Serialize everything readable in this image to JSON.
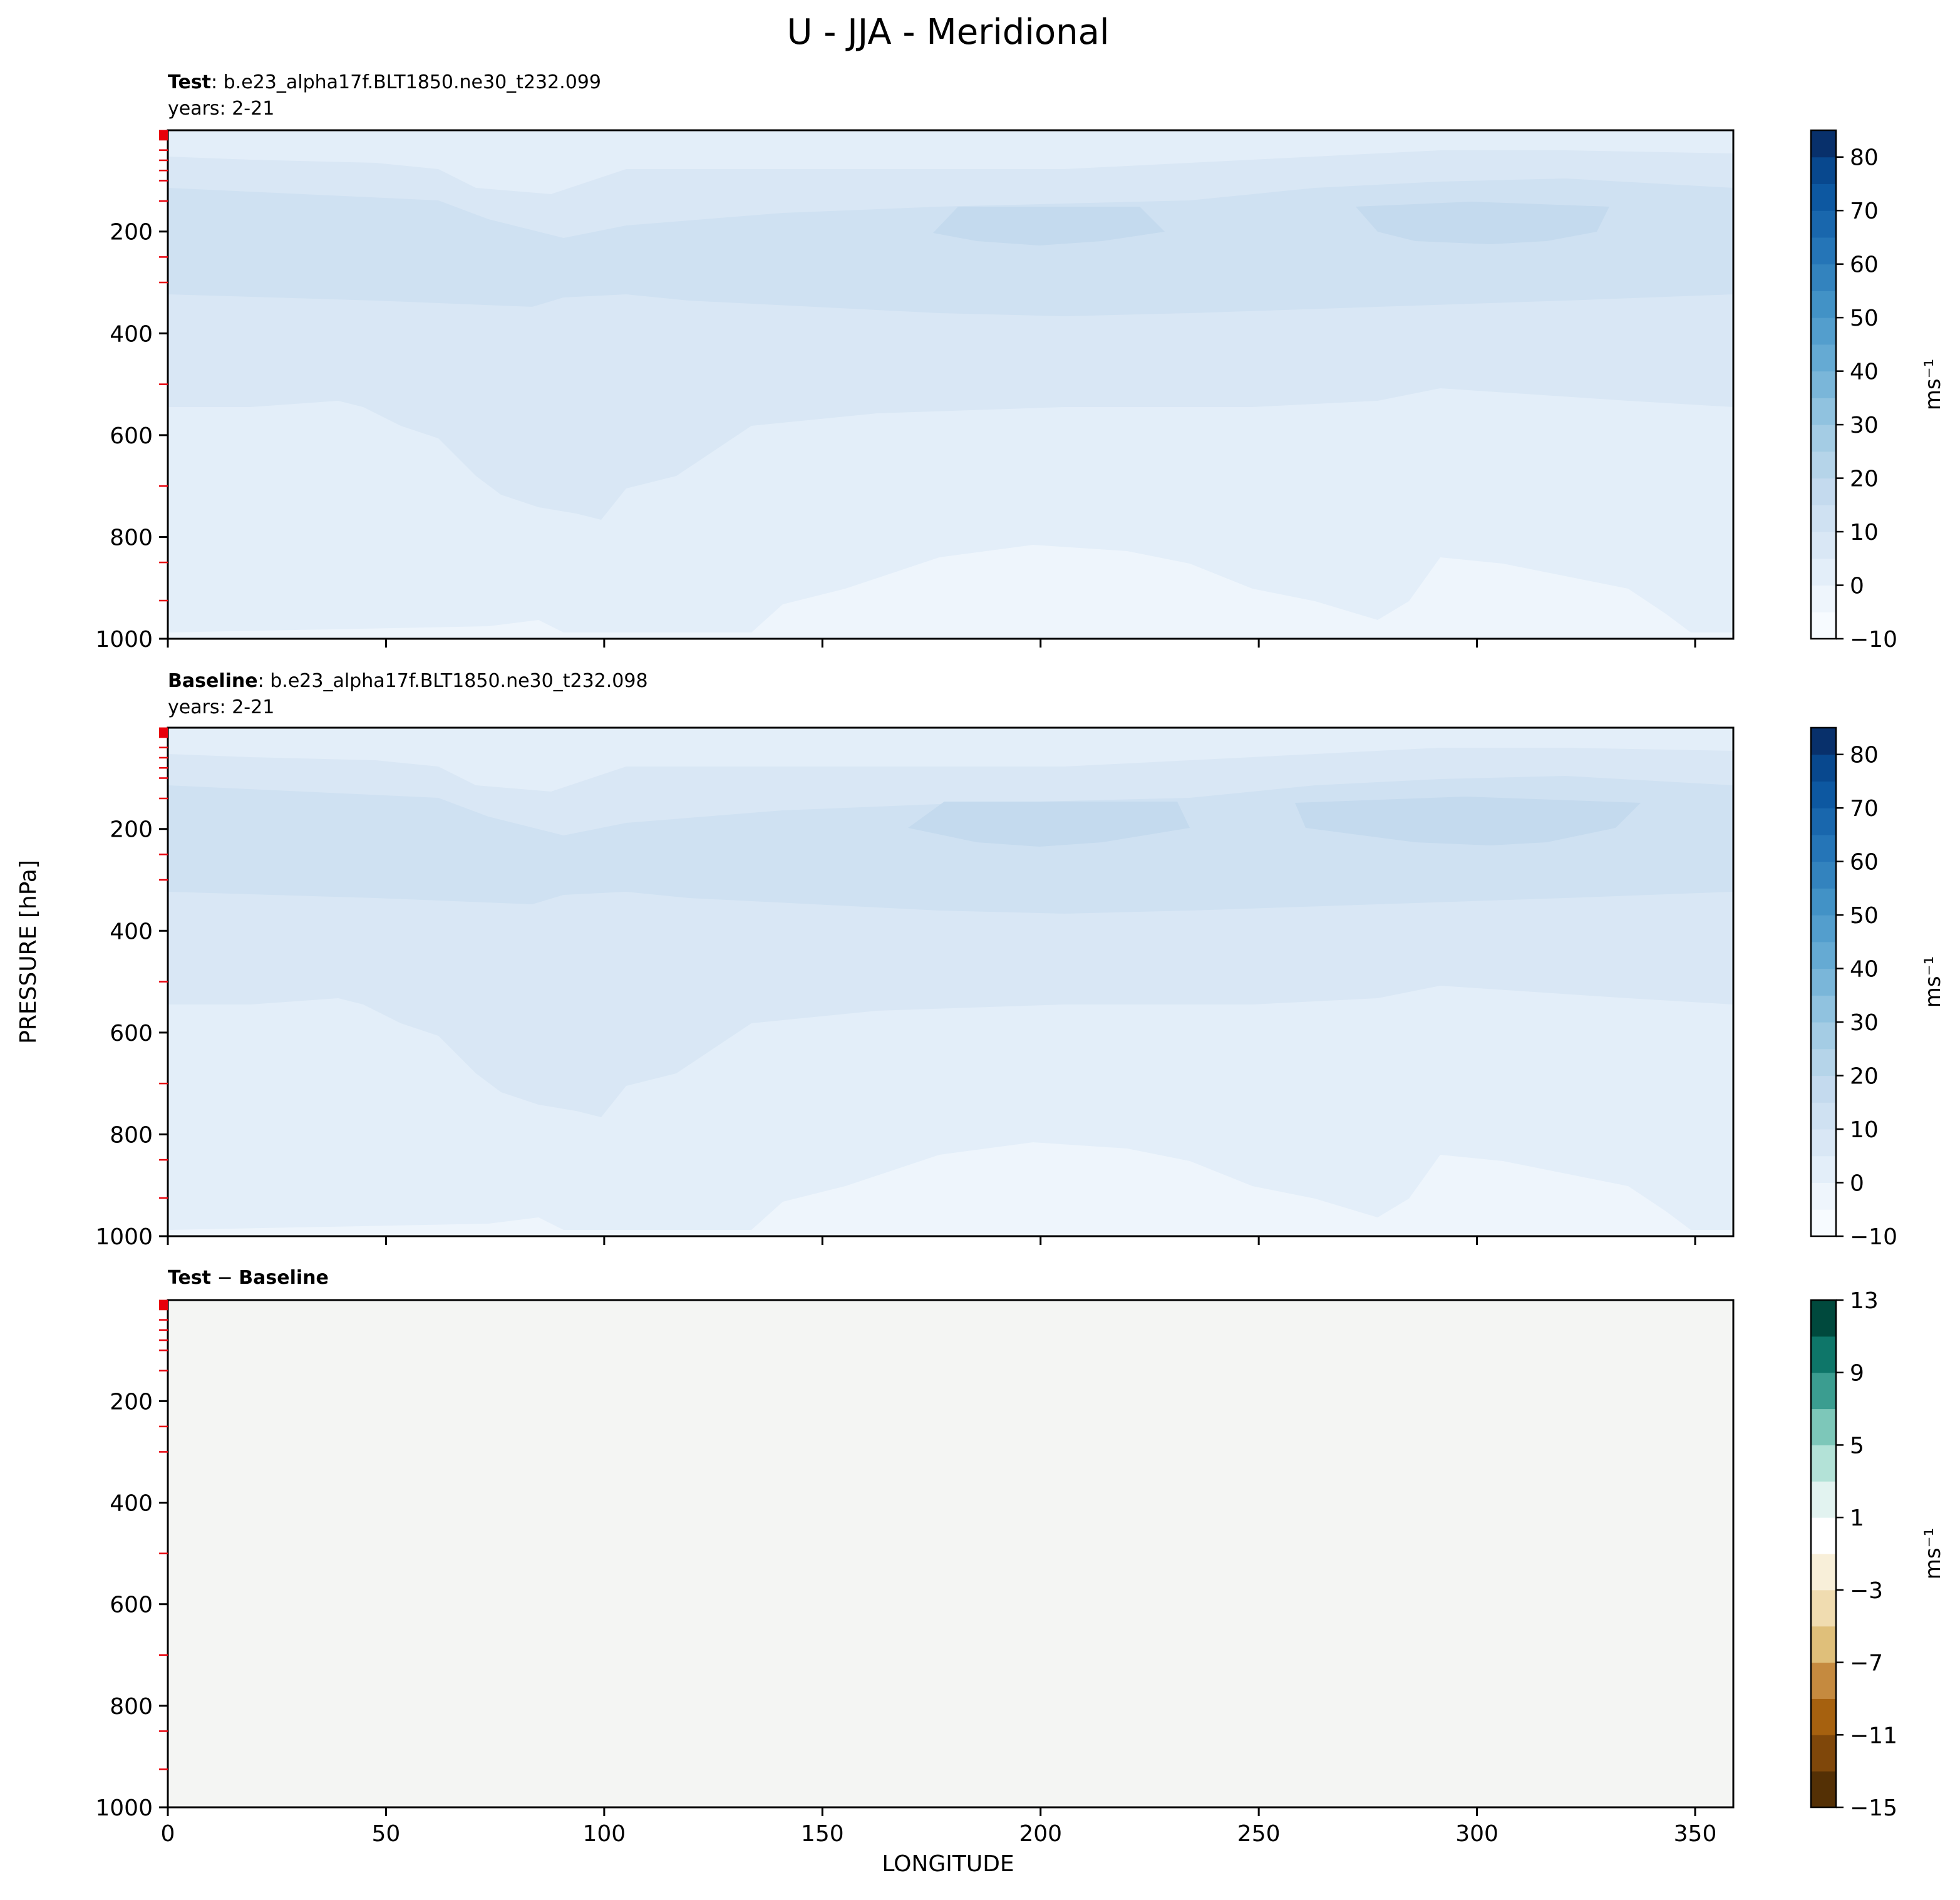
{
  "title": "U - JJA - Meridional",
  "shared": {
    "xlabel": "LONGITUDE",
    "ylabel": "PRESSURE [hPa]",
    "x_ticks": [
      0,
      50,
      100,
      150,
      200,
      250,
      300,
      350
    ],
    "y_ticks": [
      200,
      400,
      600,
      800,
      1000
    ],
    "xlim": [
      0,
      358.75
    ],
    "ylim": [
      1000,
      1
    ],
    "units_label": "ms⁻¹",
    "grid": false
  },
  "chart_data": [
    {
      "type": "heatmap",
      "panel": "test",
      "label_bold": "Test",
      "label_rest": ": b.e23_alpha17f.BLT1850.ne30_t232.099",
      "years": "years: 2-21",
      "colorbar": {
        "levels": [
          -10,
          -5,
          0,
          5,
          10,
          15,
          20,
          25,
          30,
          35,
          40,
          45,
          50,
          55,
          60,
          65,
          70,
          75,
          80,
          85
        ],
        "tick_values": [
          -10,
          0,
          10,
          20,
          30,
          40,
          50,
          60,
          70,
          80
        ],
        "tick_labels": [
          "−10",
          "0",
          "10",
          "20",
          "30",
          "40",
          "50",
          "60",
          "70",
          "80"
        ],
        "colors": [
          "#f7fbff",
          "#eef5fc",
          "#e3eef9",
          "#d9e7f5",
          "#cfe1f2",
          "#c4daee",
          "#b5d4e9",
          "#a4cce4",
          "#90c2df",
          "#7ab6d9",
          "#65aad3",
          "#539ecd",
          "#4292c6",
          "#3383be",
          "#2575b7",
          "#1967ad",
          "#0d58a1",
          "#08488e",
          "#08306b"
        ]
      },
      "field_regions": [
        {
          "range": "0-5",
          "color": "#eef5fc"
        },
        {
          "range": "5-10",
          "color": "#e3eef9"
        },
        {
          "range": "10-15",
          "color": "#d9e7f5"
        },
        {
          "range": "15-20",
          "color": "#cfe1f2"
        },
        {
          "range": "20-25",
          "color": "#c4daee"
        }
      ]
    },
    {
      "type": "heatmap",
      "panel": "baseline",
      "label_bold": "Baseline",
      "label_rest": ": b.e23_alpha17f.BLT1850.ne30_t232.098",
      "years": "years: 2-21",
      "colorbar": {
        "levels": [
          -10,
          -5,
          0,
          5,
          10,
          15,
          20,
          25,
          30,
          35,
          40,
          45,
          50,
          55,
          60,
          65,
          70,
          75,
          80,
          85
        ],
        "tick_values": [
          -10,
          0,
          10,
          20,
          30,
          40,
          50,
          60,
          70,
          80
        ],
        "tick_labels": [
          "−10",
          "0",
          "10",
          "20",
          "30",
          "40",
          "50",
          "60",
          "70",
          "80"
        ],
        "colors": [
          "#f7fbff",
          "#eef5fc",
          "#e3eef9",
          "#d9e7f5",
          "#cfe1f2",
          "#c4daee",
          "#b5d4e9",
          "#a4cce4",
          "#90c2df",
          "#7ab6d9",
          "#65aad3",
          "#539ecd",
          "#4292c6",
          "#3383be",
          "#2575b7",
          "#1967ad",
          "#0d58a1",
          "#08488e",
          "#08306b"
        ]
      }
    },
    {
      "type": "heatmap",
      "panel": "diff",
      "label_bold_1": "Test",
      "label_mid": " − ",
      "label_bold_2": "Baseline",
      "field_value_range": "-1 to 1",
      "field_color": "#f4f5f3",
      "colorbar": {
        "levels": [
          -15,
          -13,
          -11,
          -9,
          -7,
          -5,
          -3,
          -1,
          1,
          3,
          5,
          7,
          9,
          11,
          13
        ],
        "tick_values": [
          -15,
          -11,
          -7,
          -3,
          1,
          5,
          9,
          13
        ],
        "tick_labels": [
          "−15",
          "−11",
          "−7",
          "−3",
          "1",
          "5",
          "9",
          "13"
        ],
        "colors": [
          "#543005",
          "#7f470a",
          "#a6610f",
          "#c58a3f",
          "#dfbf7a",
          "#f0dcb0",
          "#f8efd9",
          "#ffffff",
          "#e2f3f0",
          "#b3e2d7",
          "#7dc7b9",
          "#3b9d90",
          "#0e7669",
          "#00493d"
        ]
      }
    }
  ]
}
